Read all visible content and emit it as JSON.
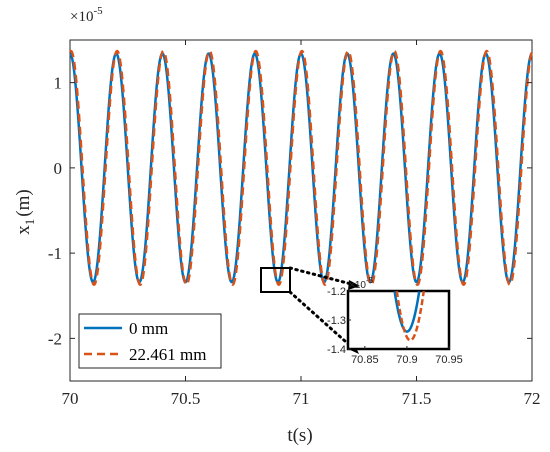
{
  "chart_data": {
    "type": "line",
    "xlabel": "t(s)",
    "ylabel": "x",
    "ylabel_sub": "1",
    "ylabel_unit": "(m)",
    "y_exponent_label": "×10",
    "y_exponent_power": "-5",
    "xlim": [
      70,
      72
    ],
    "ylim": [
      -2.5,
      1.5
    ],
    "xticks": [
      "70",
      "70.5",
      "71",
      "71.5",
      "72"
    ],
    "yticks": [
      "1",
      "0",
      "-1",
      "-2"
    ],
    "grid": false,
    "legend_position": "bottom-left",
    "series": [
      {
        "name": "0 mm",
        "style": "solid",
        "color": "#0072BD",
        "amplitude": 1.34,
        "period": 0.2,
        "first_peak_t": 70.0
      },
      {
        "name": "22.461 mm",
        "style": "dashed",
        "color": "#D95319",
        "amplitude": 1.37,
        "period": 0.2,
        "first_peak_t": 70.004
      }
    ],
    "inset": {
      "xlim": [
        70.83,
        70.95
      ],
      "ylim": [
        -1.4,
        -1.2
      ],
      "xticks": [
        "70.85",
        "70.9",
        "70.95"
      ],
      "yticks": [
        "-1.2",
        "-1.3",
        "-1.4"
      ],
      "y_exponent_label": "×10",
      "y_exponent_power": "-5",
      "zoom_region": {
        "x": [
          70.88,
          70.93
        ],
        "y": [
          -1.42,
          -1.16
        ]
      }
    }
  }
}
